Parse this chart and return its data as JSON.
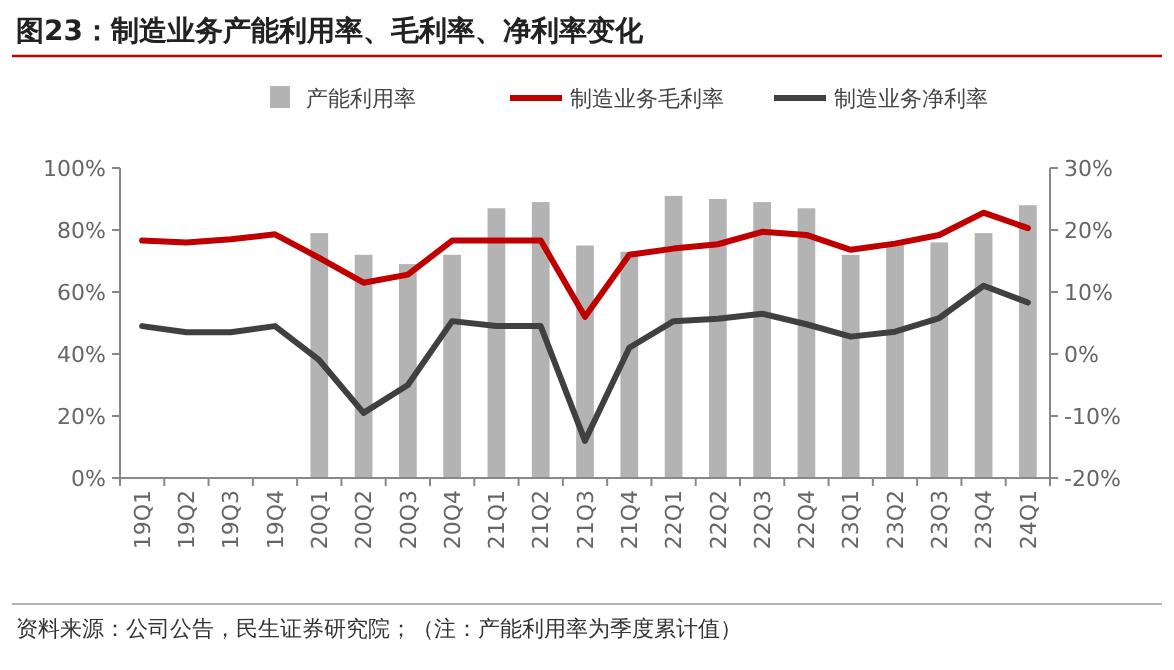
{
  "chart_data": {
    "type": "bar",
    "title": "图23：制造业务产能利用率、毛利率、净利率变化",
    "categories": [
      "19Q1",
      "19Q2",
      "19Q3",
      "19Q4",
      "20Q1",
      "20Q2",
      "20Q3",
      "20Q4",
      "21Q1",
      "21Q2",
      "21Q3",
      "21Q4",
      "22Q1",
      "22Q2",
      "22Q3",
      "22Q4",
      "23Q1",
      "23Q2",
      "23Q3",
      "23Q4",
      "24Q1"
    ],
    "series": [
      {
        "name": "产能利用率",
        "color": "#b3b3b3",
        "values": [
          null,
          null,
          null,
          null,
          79,
          72,
          69,
          72,
          87,
          89,
          75,
          73,
          91,
          90,
          89,
          87,
          72,
          76,
          76,
          79,
          88
        ]
      },
      {
        "name": "制造业务毛利率",
        "type": "line",
        "axis": "y2",
        "color": "#c00000",
        "values": [
          18.3,
          18,
          18.5,
          19.3,
          15.5,
          11.5,
          12.8,
          18.3,
          18.3,
          18.3,
          6,
          16,
          17,
          17.7,
          19.7,
          19.2,
          16.8,
          17.8,
          19.2,
          22.8,
          20.3
        ]
      },
      {
        "name": "制造业务净利率",
        "type": "line",
        "axis": "y2",
        "color": "#404040",
        "values": [
          4.5,
          3.5,
          3.5,
          4.5,
          -1,
          -9.5,
          -5,
          5.3,
          4.5,
          4.5,
          -14,
          1,
          5.3,
          5.7,
          6.5,
          4.8,
          2.8,
          3.6,
          5.8,
          11,
          8.3
        ]
      }
    ],
    "ylim": [
      0,
      100
    ],
    "yticks": [
      {
        "value": 0,
        "label": "0%"
      },
      {
        "value": 20,
        "label": "20%"
      },
      {
        "value": 40,
        "label": "40%"
      },
      {
        "value": 60,
        "label": "60%"
      },
      {
        "value": 80,
        "label": "80%"
      },
      {
        "value": 100,
        "label": "100%"
      }
    ],
    "y2lim": [
      -20,
      30
    ],
    "y2ticks": [
      {
        "value": -20,
        "label": "-20%"
      },
      {
        "value": -10,
        "label": "-10%"
      },
      {
        "value": 0,
        "label": "0%"
      },
      {
        "value": 10,
        "label": "10%"
      },
      {
        "value": 20,
        "label": "20%"
      },
      {
        "value": 30,
        "label": "30%"
      }
    ],
    "legend": "top",
    "grid": false,
    "annotations": [
      "资料来源：公司公告，民生证券研究院；（注：产能利用率为季度累计值）"
    ]
  }
}
